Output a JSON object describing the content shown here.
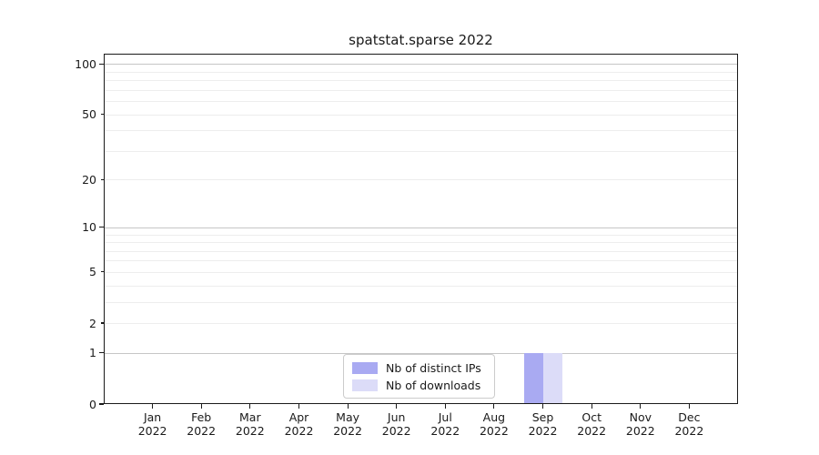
{
  "chart_data": {
    "type": "bar",
    "title": "spatstat.sparse 2022",
    "categories": [
      "Jan",
      "Feb",
      "Mar",
      "Apr",
      "May",
      "Jun",
      "Jul",
      "Aug",
      "Sep",
      "Oct",
      "Nov",
      "Dec"
    ],
    "x_year": "2022",
    "series": [
      {
        "name": "Nb of distinct IPs",
        "color": "#a9aaf2",
        "values": [
          0,
          0,
          0,
          0,
          0,
          0,
          0,
          0,
          1,
          0,
          0,
          0
        ]
      },
      {
        "name": "Nb of downloads",
        "color": "#dcdcf8",
        "values": [
          0,
          0,
          0,
          0,
          0,
          0,
          0,
          0,
          1,
          0,
          0,
          0
        ]
      }
    ],
    "xlabel": "",
    "ylabel": "",
    "yscale": "log1p",
    "ylim": [
      0,
      115
    ],
    "y_tick_values": [
      0,
      1,
      2,
      5,
      10,
      20,
      50,
      100
    ],
    "y_tick_labels": [
      "0",
      "1",
      "2",
      "5",
      "10",
      "20",
      "50",
      "100"
    ],
    "y_major_gridlines": [
      1,
      10,
      100
    ],
    "y_minor_gridlines": [
      2,
      3,
      4,
      5,
      6,
      7,
      8,
      9,
      20,
      30,
      40,
      50,
      60,
      70,
      80,
      90
    ],
    "grid": true,
    "legend_position": "lower center"
  }
}
